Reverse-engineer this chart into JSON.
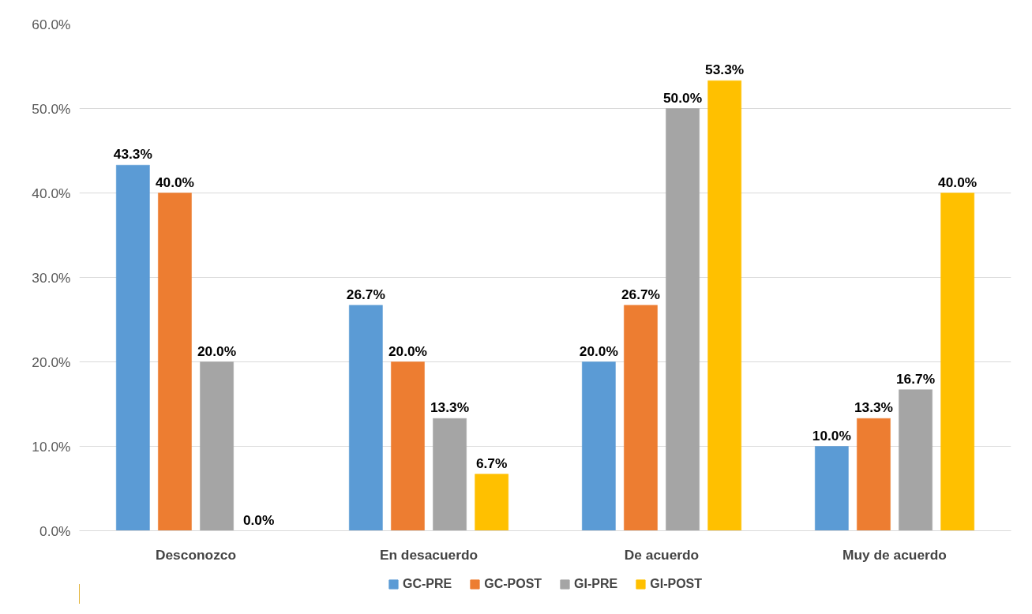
{
  "chart_data": {
    "type": "bar",
    "categories": [
      "Desconozco",
      "En desacuerdo",
      "De acuerdo",
      "Muy de acuerdo"
    ],
    "series": [
      {
        "name": "GC-PRE",
        "color": "#5b9bd5",
        "values": [
          43.3,
          26.7,
          20.0,
          10.0
        ],
        "value_labels": [
          "43.3%",
          "26.7%",
          "20.0%",
          "10.0%"
        ]
      },
      {
        "name": "GC-POST",
        "color": "#ed7d31",
        "values": [
          40.0,
          20.0,
          26.7,
          13.3
        ],
        "value_labels": [
          "40.0%",
          "20.0%",
          "26.7%",
          "13.3%"
        ]
      },
      {
        "name": "GI-PRE",
        "color": "#a5a5a5",
        "values": [
          20.0,
          13.3,
          50.0,
          16.7
        ],
        "value_labels": [
          "20.0%",
          "13.3%",
          "50.0%",
          "16.7%"
        ]
      },
      {
        "name": "GI-POST",
        "color": "#ffc000",
        "values": [
          0.0,
          6.7,
          53.3,
          40.0
        ],
        "value_labels": [
          "0.0%",
          "6.7%",
          "53.3%",
          "40.0%"
        ]
      }
    ],
    "ylim": [
      0,
      60
    ],
    "yticks": [
      {
        "value": 0,
        "label": "0.0%"
      },
      {
        "value": 10,
        "label": "10.0%"
      },
      {
        "value": 20,
        "label": "20.0%"
      },
      {
        "value": 30,
        "label": "30.0%"
      },
      {
        "value": 40,
        "label": "40.0%"
      },
      {
        "value": 50,
        "label": "50.0%"
      },
      {
        "value": 60,
        "label": "60.0%"
      }
    ],
    "grid": "y",
    "legend": "bottom"
  }
}
